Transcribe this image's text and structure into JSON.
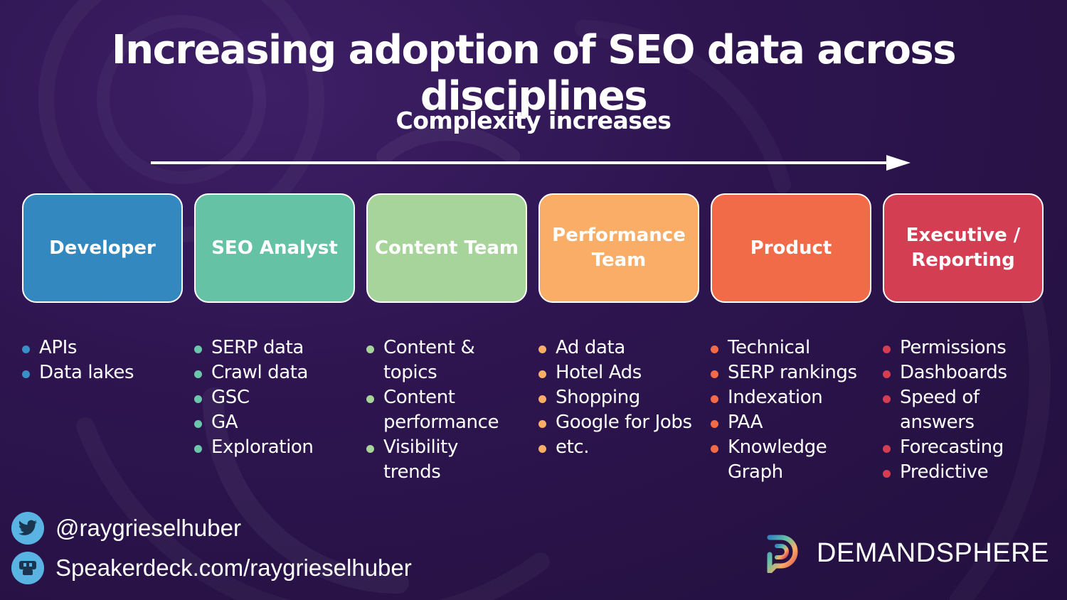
{
  "title": "Increasing adoption of SEO data across disciplines",
  "subtitle": "Complexity increases",
  "columns": [
    {
      "label": "Developer",
      "color": "#3389bf",
      "dot": "#3a8fc6",
      "items": [
        "APIs",
        "Data lakes"
      ]
    },
    {
      "label": "SEO Analyst",
      "color": "#66c2a5",
      "dot": "#6cc6a9",
      "items": [
        "SERP data",
        "Crawl data",
        "GSC",
        "GA",
        "Exploration"
      ]
    },
    {
      "label": "Content Team",
      "color": "#a6d49a",
      "dot": "#a6d49a",
      "items": [
        "Content & topics",
        "Content performance",
        "Visibility trends"
      ]
    },
    {
      "label": "Performance Team",
      "color": "#f9ad66",
      "dot": "#f9ad66",
      "items": [
        "Ad data",
        "Hotel Ads",
        "Shopping",
        "Google for Jobs",
        "etc."
      ]
    },
    {
      "label": "Product",
      "color": "#f26b49",
      "dot": "#f26b49",
      "items": [
        "Technical",
        "SERP rankings",
        "Indexation",
        "PAA",
        "Knowledge Graph"
      ]
    },
    {
      "label": "Executive / Reporting",
      "color": "#d43e53",
      "dot": "#d43e53",
      "items": [
        "Permissions",
        "Dashboards",
        "Speed of answers",
        "Forecasting",
        "Predictive"
      ]
    }
  ],
  "social": {
    "twitter_icon": "twitter-bird-icon",
    "twitter": "@raygrieselhuber",
    "speakerdeck_icon": "speakerdeck-icon",
    "speakerdeck": "Speakerdeck.com/raygrieselhuber"
  },
  "brand": {
    "name": "DEMANDSPHERE",
    "logo": "demandsphere-logo-icon"
  }
}
